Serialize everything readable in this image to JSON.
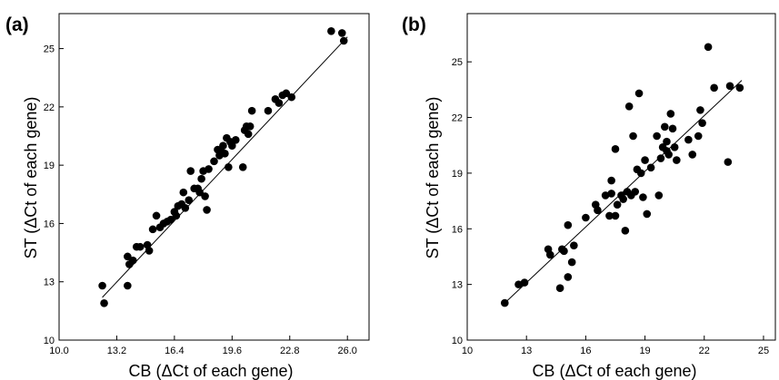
{
  "chart_data": [
    {
      "type": "scatter",
      "panel_label": "(a)",
      "xlabel": "CB (ΔCt of each gene)",
      "ylabel": "ST (ΔCt of each gene)",
      "xlim": [
        10.0,
        27.2
      ],
      "ylim": [
        10,
        26.8
      ],
      "xticks": [
        10.0,
        13.2,
        16.4,
        19.6,
        22.8,
        26.0
      ],
      "xtick_labels": [
        "10.0",
        "13.2",
        "16.4",
        "19.6",
        "22.8",
        "26.0"
      ],
      "yticks": [
        10,
        13,
        16,
        19,
        22,
        25
      ],
      "ytick_labels": [
        "10",
        "13",
        "16",
        "19",
        "22",
        "25"
      ],
      "grid": false,
      "legend": false,
      "trendline": {
        "x": [
          12.4,
          26.0
        ],
        "y": [
          12.2,
          25.6
        ]
      },
      "points": [
        [
          12.4,
          12.8
        ],
        [
          12.5,
          11.9
        ],
        [
          13.8,
          12.8
        ],
        [
          13.8,
          14.3
        ],
        [
          13.9,
          13.9
        ],
        [
          14.1,
          14.1
        ],
        [
          14.3,
          14.8
        ],
        [
          14.5,
          14.8
        ],
        [
          14.9,
          14.9
        ],
        [
          15.0,
          14.6
        ],
        [
          15.2,
          15.7
        ],
        [
          15.4,
          16.4
        ],
        [
          15.6,
          15.8
        ],
        [
          15.8,
          16.0
        ],
        [
          16.0,
          16.1
        ],
        [
          16.2,
          16.2
        ],
        [
          16.4,
          16.6
        ],
        [
          16.5,
          16.4
        ],
        [
          16.6,
          16.9
        ],
        [
          16.8,
          17.0
        ],
        [
          16.9,
          17.6
        ],
        [
          17.0,
          16.8
        ],
        [
          17.2,
          17.2
        ],
        [
          17.3,
          18.7
        ],
        [
          17.5,
          17.8
        ],
        [
          17.7,
          17.8
        ],
        [
          17.8,
          17.6
        ],
        [
          17.9,
          18.3
        ],
        [
          18.0,
          18.7
        ],
        [
          18.1,
          17.4
        ],
        [
          18.2,
          16.7
        ],
        [
          18.3,
          18.8
        ],
        [
          18.6,
          19.2
        ],
        [
          18.8,
          19.8
        ],
        [
          18.9,
          19.5
        ],
        [
          19.0,
          19.7
        ],
        [
          19.1,
          20.0
        ],
        [
          19.2,
          19.6
        ],
        [
          19.3,
          20.4
        ],
        [
          19.4,
          18.9
        ],
        [
          19.5,
          20.2
        ],
        [
          19.6,
          20.0
        ],
        [
          19.8,
          20.3
        ],
        [
          20.2,
          18.9
        ],
        [
          20.3,
          20.8
        ],
        [
          20.4,
          21.0
        ],
        [
          20.5,
          20.6
        ],
        [
          20.6,
          21.0
        ],
        [
          20.7,
          21.8
        ],
        [
          21.6,
          21.8
        ],
        [
          22.0,
          22.4
        ],
        [
          22.2,
          22.2
        ],
        [
          22.4,
          22.6
        ],
        [
          22.6,
          22.7
        ],
        [
          22.9,
          22.5
        ],
        [
          25.1,
          25.9
        ],
        [
          25.7,
          25.8
        ],
        [
          25.8,
          25.4
        ]
      ]
    },
    {
      "type": "scatter",
      "panel_label": "(b)",
      "xlabel": "CB (ΔCt of each gene)",
      "ylabel": "ST (ΔCt of each gene)",
      "xlim": [
        10,
        25.6
      ],
      "ylim": [
        10,
        27.6
      ],
      "xticks": [
        10,
        13,
        16,
        19,
        22,
        25
      ],
      "xtick_labels": [
        "10",
        "13",
        "16",
        "19",
        "22",
        "25"
      ],
      "yticks": [
        10,
        13,
        16,
        19,
        22,
        25
      ],
      "ytick_labels": [
        "10",
        "13",
        "16",
        "19",
        "22",
        "25"
      ],
      "grid": false,
      "legend": false,
      "trendline": {
        "x": [
          11.9,
          23.9
        ],
        "y": [
          12.0,
          24.0
        ]
      },
      "points": [
        [
          11.9,
          12.0
        ],
        [
          12.6,
          13.0
        ],
        [
          12.9,
          13.1
        ],
        [
          14.1,
          14.9
        ],
        [
          14.2,
          14.6
        ],
        [
          14.7,
          12.8
        ],
        [
          14.8,
          14.9
        ],
        [
          14.9,
          14.8
        ],
        [
          15.1,
          16.2
        ],
        [
          15.1,
          13.4
        ],
        [
          15.3,
          14.2
        ],
        [
          15.4,
          15.1
        ],
        [
          16.0,
          16.6
        ],
        [
          16.5,
          17.3
        ],
        [
          16.6,
          17.0
        ],
        [
          17.0,
          17.8
        ],
        [
          17.2,
          16.7
        ],
        [
          17.3,
          17.9
        ],
        [
          17.3,
          18.6
        ],
        [
          17.5,
          20.3
        ],
        [
          17.5,
          16.7
        ],
        [
          17.6,
          17.3
        ],
        [
          17.8,
          17.8
        ],
        [
          17.9,
          17.6
        ],
        [
          18.0,
          15.9
        ],
        [
          18.1,
          18.0
        ],
        [
          18.2,
          22.6
        ],
        [
          18.3,
          17.8
        ],
        [
          18.4,
          21.0
        ],
        [
          18.5,
          18.0
        ],
        [
          18.6,
          19.2
        ],
        [
          18.7,
          23.3
        ],
        [
          18.8,
          19.0
        ],
        [
          18.9,
          17.7
        ],
        [
          19.0,
          19.7
        ],
        [
          19.1,
          16.8
        ],
        [
          19.3,
          19.3
        ],
        [
          19.6,
          21.0
        ],
        [
          19.7,
          17.8
        ],
        [
          19.8,
          19.8
        ],
        [
          19.9,
          20.4
        ],
        [
          20.0,
          21.5
        ],
        [
          20.1,
          20.2
        ],
        [
          20.1,
          20.7
        ],
        [
          20.2,
          20.0
        ],
        [
          20.3,
          22.2
        ],
        [
          20.4,
          21.4
        ],
        [
          20.5,
          20.4
        ],
        [
          20.6,
          19.7
        ],
        [
          21.2,
          20.8
        ],
        [
          21.4,
          20.0
        ],
        [
          21.7,
          21.0
        ],
        [
          21.8,
          22.4
        ],
        [
          21.9,
          21.7
        ],
        [
          22.2,
          25.8
        ],
        [
          22.5,
          23.6
        ],
        [
          23.2,
          19.6
        ],
        [
          23.3,
          23.7
        ],
        [
          23.8,
          23.6
        ]
      ]
    }
  ]
}
